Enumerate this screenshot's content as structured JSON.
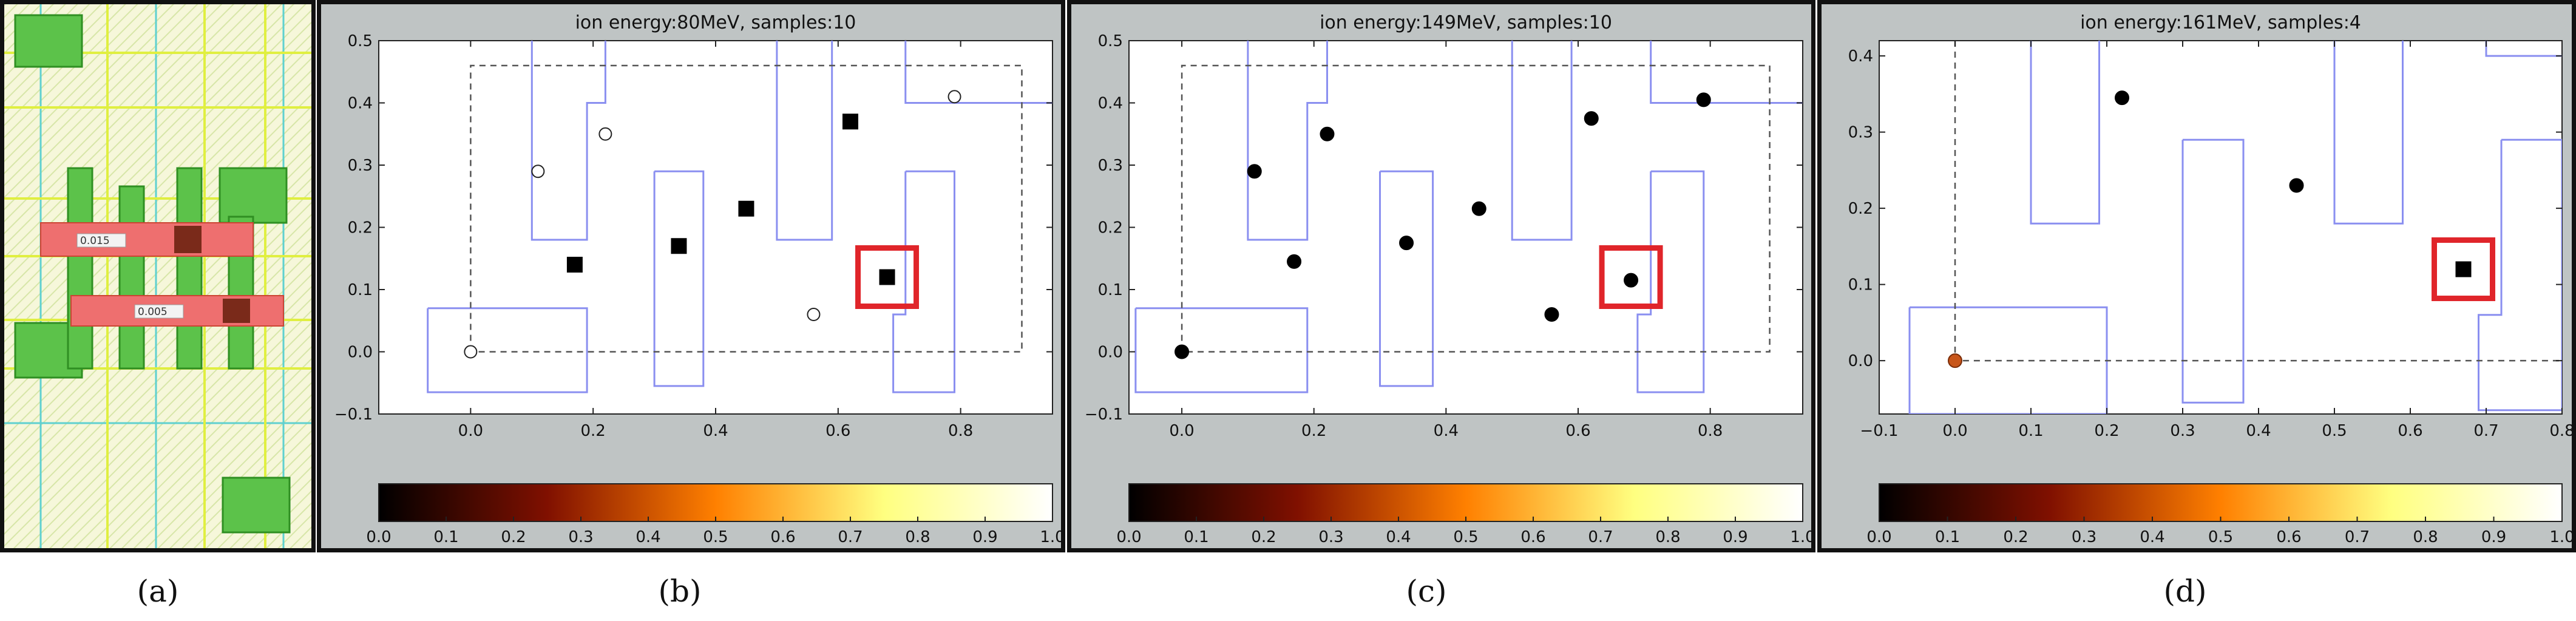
{
  "panels": [
    {
      "id": "a",
      "caption": "(a)",
      "layout_labels": [
        "0.015",
        "0.005"
      ]
    },
    {
      "id": "b",
      "caption": "(b)"
    },
    {
      "id": "c",
      "caption": "(c)"
    },
    {
      "id": "d",
      "caption": "(d)"
    }
  ],
  "chart_data": [
    {
      "panel": "b",
      "type": "scatter",
      "title": "ion energy:80MeV, samples:10",
      "xlim": [
        -0.15,
        0.95
      ],
      "ylim": [
        -0.1,
        0.5
      ],
      "xticks": [
        "0.0",
        "0.2",
        "0.4",
        "0.6",
        "0.8"
      ],
      "yticks": [
        "−0.1",
        "0.0",
        "0.1",
        "0.2",
        "0.3",
        "0.4",
        "0.5"
      ],
      "grid": false,
      "points": [
        {
          "x": 0.0,
          "y": 0.0,
          "marker": "circle",
          "fill": "open"
        },
        {
          "x": 0.11,
          "y": 0.29,
          "marker": "circle",
          "fill": "open"
        },
        {
          "x": 0.22,
          "y": 0.35,
          "marker": "circle",
          "fill": "open"
        },
        {
          "x": 0.17,
          "y": 0.14,
          "marker": "square",
          "fill": "filled"
        },
        {
          "x": 0.34,
          "y": 0.17,
          "marker": "square",
          "fill": "filled"
        },
        {
          "x": 0.45,
          "y": 0.23,
          "marker": "square",
          "fill": "filled"
        },
        {
          "x": 0.56,
          "y": 0.06,
          "marker": "circle",
          "fill": "open"
        },
        {
          "x": 0.62,
          "y": 0.37,
          "marker": "square",
          "fill": "filled"
        },
        {
          "x": 0.68,
          "y": 0.12,
          "marker": "square",
          "fill": "filled"
        },
        {
          "x": 0.79,
          "y": 0.41,
          "marker": "circle",
          "fill": "open"
        }
      ],
      "highlight": {
        "x": 0.68,
        "y": 0.12
      },
      "colorbar": {
        "ticks": [
          "0.0",
          "0.1",
          "0.2",
          "0.3",
          "0.4",
          "0.5",
          "0.6",
          "0.7",
          "0.8",
          "0.9",
          "1.0"
        ]
      },
      "dashed_path": [
        [
          0,
          0
        ],
        [
          0,
          0.46
        ],
        [
          0.9,
          0.46
        ],
        [
          0.9,
          0.0
        ],
        [
          0,
          0
        ]
      ],
      "shapes": [
        [
          [
            0.1,
            0.5
          ],
          [
            0.1,
            0.18
          ],
          [
            0.19,
            0.18
          ],
          [
            0.19,
            0.4
          ],
          [
            0.22,
            0.4
          ],
          [
            0.22,
            0.5
          ]
        ],
        [
          [
            -0.07,
            0.07
          ],
          [
            0.19,
            0.07
          ],
          [
            0.19,
            -0.065
          ],
          [
            -0.07,
            -0.065
          ],
          [
            -0.07,
            0.07
          ]
        ],
        [
          [
            0.3,
            0.29
          ],
          [
            0.38,
            0.29
          ],
          [
            0.38,
            -0.055
          ],
          [
            0.3,
            -0.055
          ],
          [
            0.3,
            0.29
          ]
        ],
        [
          [
            0.5,
            0.5
          ],
          [
            0.5,
            0.18
          ],
          [
            0.59,
            0.18
          ],
          [
            0.59,
            0.5
          ]
        ],
        [
          [
            0.71,
            0.5
          ],
          [
            0.71,
            0.4
          ],
          [
            0.95,
            0.4
          ]
        ],
        [
          [
            0.71,
            0.29
          ],
          [
            0.79,
            0.29
          ],
          [
            0.79,
            -0.065
          ],
          [
            0.69,
            -0.065
          ],
          [
            0.69,
            0.06
          ],
          [
            0.71,
            0.06
          ],
          [
            0.71,
            0.29
          ]
        ]
      ]
    },
    {
      "panel": "c",
      "type": "scatter",
      "title": "ion energy:149MeV, samples:10",
      "xlim": [
        -0.08,
        0.94
      ],
      "ylim": [
        -0.1,
        0.5
      ],
      "xticks": [
        "0.0",
        "0.2",
        "0.4",
        "0.6",
        "0.8"
      ],
      "yticks": [
        "−0.1",
        "0.0",
        "0.1",
        "0.2",
        "0.3",
        "0.4",
        "0.5"
      ],
      "grid": false,
      "points": [
        {
          "x": 0.0,
          "y": 0.0,
          "marker": "circle",
          "fill": "filled"
        },
        {
          "x": 0.11,
          "y": 0.29,
          "marker": "circle",
          "fill": "filled"
        },
        {
          "x": 0.17,
          "y": 0.145,
          "marker": "circle",
          "fill": "filled"
        },
        {
          "x": 0.22,
          "y": 0.35,
          "marker": "circle",
          "fill": "filled"
        },
        {
          "x": 0.34,
          "y": 0.175,
          "marker": "circle",
          "fill": "filled"
        },
        {
          "x": 0.45,
          "y": 0.23,
          "marker": "circle",
          "fill": "filled"
        },
        {
          "x": 0.56,
          "y": 0.06,
          "marker": "circle",
          "fill": "filled"
        },
        {
          "x": 0.62,
          "y": 0.375,
          "marker": "circle",
          "fill": "filled"
        },
        {
          "x": 0.68,
          "y": 0.115,
          "marker": "circle",
          "fill": "filled"
        },
        {
          "x": 0.79,
          "y": 0.405,
          "marker": "circle",
          "fill": "filled"
        }
      ],
      "highlight": {
        "x": 0.68,
        "y": 0.12
      },
      "colorbar": {
        "ticks": [
          "0.0",
          "0.1",
          "0.2",
          "0.3",
          "0.4",
          "0.5",
          "0.6",
          "0.7",
          "0.8",
          "0.9",
          "1.0"
        ]
      },
      "dashed_path": [
        [
          0,
          0
        ],
        [
          0,
          0.46
        ],
        [
          0.89,
          0.46
        ],
        [
          0.89,
          0.0
        ],
        [
          0,
          0
        ]
      ],
      "shapes": [
        [
          [
            0.1,
            0.5
          ],
          [
            0.1,
            0.18
          ],
          [
            0.19,
            0.18
          ],
          [
            0.19,
            0.4
          ],
          [
            0.22,
            0.4
          ],
          [
            0.22,
            0.5
          ]
        ],
        [
          [
            -0.07,
            0.07
          ],
          [
            0.19,
            0.07
          ],
          [
            0.19,
            -0.065
          ],
          [
            -0.07,
            -0.065
          ],
          [
            -0.07,
            0.07
          ]
        ],
        [
          [
            0.3,
            0.29
          ],
          [
            0.38,
            0.29
          ],
          [
            0.38,
            -0.055
          ],
          [
            0.3,
            -0.055
          ],
          [
            0.3,
            0.29
          ]
        ],
        [
          [
            0.5,
            0.5
          ],
          [
            0.5,
            0.18
          ],
          [
            0.59,
            0.18
          ],
          [
            0.59,
            0.5
          ]
        ],
        [
          [
            0.71,
            0.5
          ],
          [
            0.71,
            0.4
          ],
          [
            0.95,
            0.4
          ]
        ],
        [
          [
            0.71,
            0.29
          ],
          [
            0.79,
            0.29
          ],
          [
            0.79,
            -0.065
          ],
          [
            0.69,
            -0.065
          ],
          [
            0.69,
            0.06
          ],
          [
            0.71,
            0.06
          ],
          [
            0.71,
            0.29
          ]
        ]
      ]
    },
    {
      "panel": "d",
      "type": "scatter",
      "title": "ion energy:161MeV, samples:4",
      "xlim": [
        -0.1,
        0.8
      ],
      "ylim": [
        -0.07,
        0.42
      ],
      "xticks": [
        "−0.1",
        "0.0",
        "0.1",
        "0.2",
        "0.3",
        "0.4",
        "0.5",
        "0.6",
        "0.7",
        "0.8"
      ],
      "yticks": [
        "0.0",
        "0.1",
        "0.2",
        "0.3",
        "0.4"
      ],
      "grid": false,
      "points": [
        {
          "x": 0.0,
          "y": 0.0,
          "marker": "circle",
          "fill": "orange"
        },
        {
          "x": 0.22,
          "y": 0.345,
          "marker": "circle",
          "fill": "filled"
        },
        {
          "x": 0.45,
          "y": 0.23,
          "marker": "circle",
          "fill": "filled"
        },
        {
          "x": 0.67,
          "y": 0.12,
          "marker": "square",
          "fill": "filled"
        }
      ],
      "highlight": {
        "x": 0.67,
        "y": 0.12
      },
      "colorbar": {
        "ticks": [
          "0.0",
          "0.1",
          "0.2",
          "0.3",
          "0.4",
          "0.5",
          "0.6",
          "0.7",
          "0.8",
          "0.9",
          "1.0"
        ]
      },
      "dashed_path": [
        [
          0,
          0.42
        ],
        [
          0,
          0.0
        ],
        [
          0.8,
          0.0
        ]
      ],
      "shapes": [
        [
          [
            0.1,
            0.42
          ],
          [
            0.1,
            0.18
          ],
          [
            0.19,
            0.18
          ],
          [
            0.19,
            0.42
          ]
        ],
        [
          [
            -0.06,
            0.07
          ],
          [
            0.2,
            0.07
          ],
          [
            0.2,
            -0.07
          ],
          [
            -0.06,
            -0.07
          ],
          [
            -0.06,
            0.07
          ]
        ],
        [
          [
            0.3,
            0.29
          ],
          [
            0.38,
            0.29
          ],
          [
            0.38,
            -0.055
          ],
          [
            0.3,
            -0.055
          ],
          [
            0.3,
            0.29
          ]
        ],
        [
          [
            0.5,
            0.42
          ],
          [
            0.5,
            0.18
          ],
          [
            0.59,
            0.18
          ],
          [
            0.59,
            0.42
          ]
        ],
        [
          [
            0.7,
            0.42
          ],
          [
            0.7,
            0.4
          ],
          [
            0.8,
            0.4
          ]
        ],
        [
          [
            0.72,
            0.29
          ],
          [
            0.8,
            0.29
          ],
          [
            0.8,
            -0.065
          ],
          [
            0.69,
            -0.065
          ],
          [
            0.69,
            0.06
          ],
          [
            0.72,
            0.06
          ],
          [
            0.72,
            0.29
          ]
        ]
      ]
    }
  ]
}
